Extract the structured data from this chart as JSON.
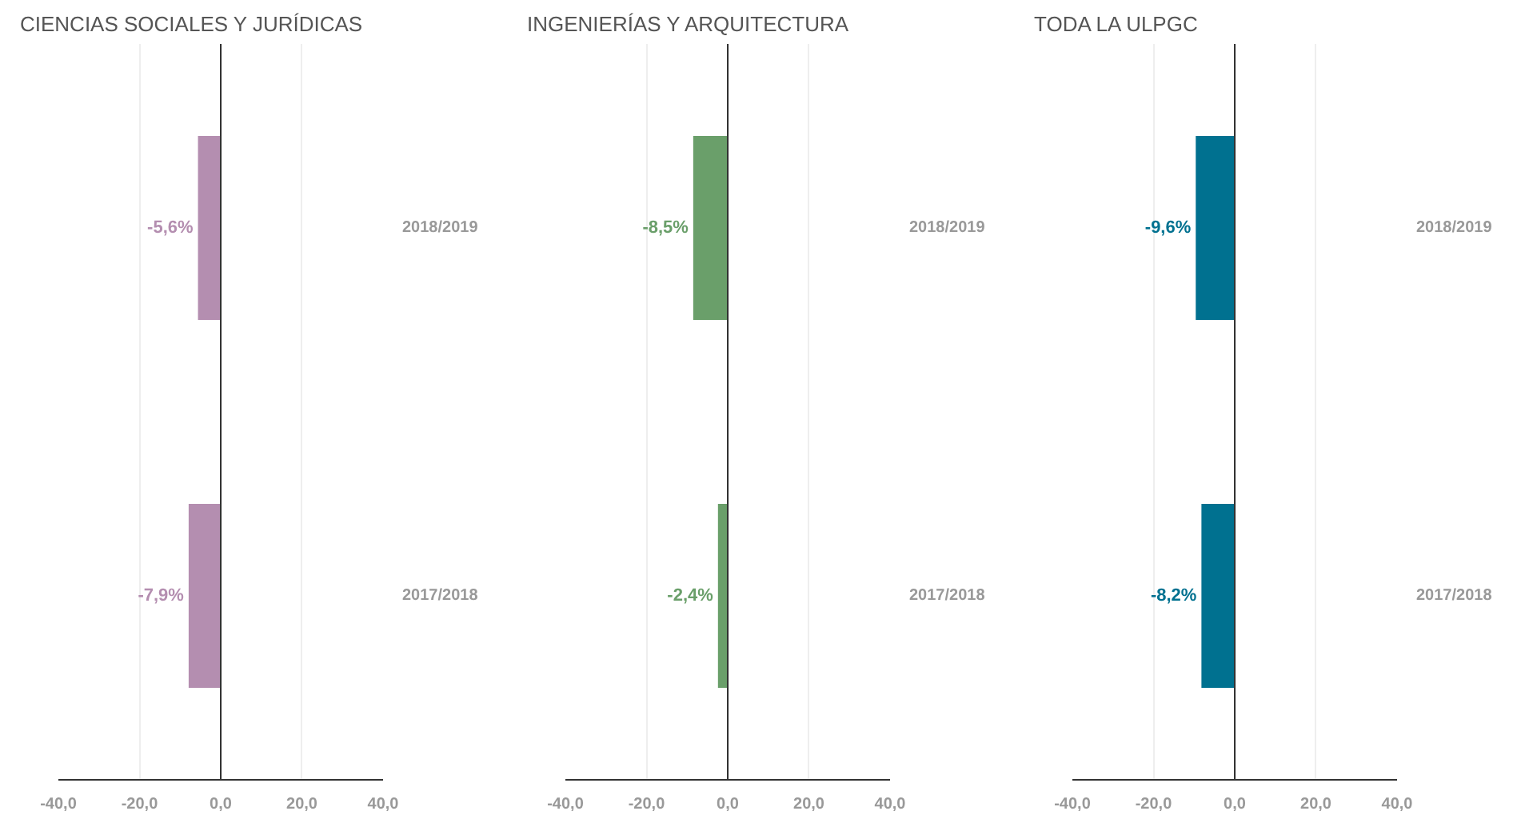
{
  "chart_data": [
    {
      "type": "bar",
      "orientation": "horizontal",
      "title": "CIENCIAS SOCIALES Y JURÍDICAS",
      "categories": [
        "2018/2019",
        "2017/2018"
      ],
      "values": [
        -5.6,
        -7.9
      ],
      "color": "#b48eb0",
      "value_labels": [
        "-5,6%",
        "-7,9%"
      ],
      "xlim": [
        -40,
        40
      ],
      "xticks": [
        {
          "value": -40,
          "label": "-40,0"
        },
        {
          "value": -20,
          "label": "-20,0"
        },
        {
          "value": 0,
          "label": "0,0"
        },
        {
          "value": 20,
          "label": "20,0"
        },
        {
          "value": 40,
          "label": "40,0"
        }
      ],
      "grid": "x",
      "ref_lines": [
        {
          "axis": "x",
          "value": 0
        }
      ]
    },
    {
      "type": "bar",
      "orientation": "horizontal",
      "title": "INGENIERÍAS Y ARQUITECTURA",
      "categories": [
        "2018/2019",
        "2017/2018"
      ],
      "values": [
        -8.5,
        -2.4
      ],
      "color": "#6a9f6a",
      "value_labels": [
        "-8,5%",
        "-2,4%"
      ],
      "xlim": [
        -40,
        40
      ],
      "xticks": [
        {
          "value": -40,
          "label": "-40,0"
        },
        {
          "value": -20,
          "label": "-20,0"
        },
        {
          "value": 0,
          "label": "0,0"
        },
        {
          "value": 20,
          "label": "20,0"
        },
        {
          "value": 40,
          "label": "40,0"
        }
      ],
      "grid": "x",
      "ref_lines": [
        {
          "axis": "x",
          "value": 0
        }
      ]
    },
    {
      "type": "bar",
      "orientation": "horizontal",
      "title": "TODA LA ULPGC",
      "categories": [
        "2018/2019",
        "2017/2018"
      ],
      "values": [
        -9.6,
        -8.2
      ],
      "color": "#007190",
      "value_labels": [
        "-9,6%",
        "-8,2%"
      ],
      "xlim": [
        -40,
        40
      ],
      "xticks": [
        {
          "value": -40,
          "label": "-40,0"
        },
        {
          "value": -20,
          "label": "-20,0"
        },
        {
          "value": 0,
          "label": "0,0"
        },
        {
          "value": 20,
          "label": "20,0"
        },
        {
          "value": 40,
          "label": "40,0"
        }
      ],
      "grid": "x",
      "ref_lines": [
        {
          "axis": "x",
          "value": 0
        }
      ]
    }
  ]
}
